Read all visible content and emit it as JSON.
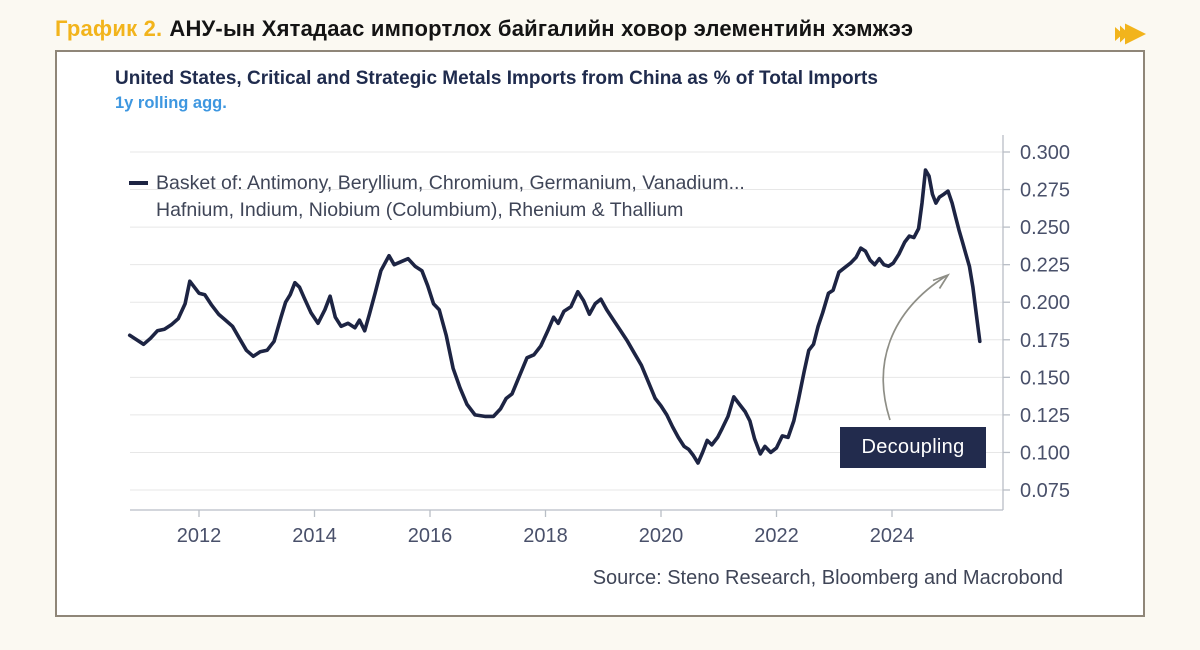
{
  "header": {
    "figure_label": "График 2.",
    "title": "АНУ-ын Хятадаас импортлох байгалийн ховор элементийн хэмжээ",
    "arrow_icon": "fast-forward",
    "accent_color": "#f2b41c"
  },
  "chart": {
    "title": "United States, Critical and Strategic Metals Imports from China as % of Total Imports",
    "subtitle": "1y rolling agg.",
    "legend_line1": "Basket of: Antimony, Beryllium, Chromium, Germanium, Vanadium...",
    "legend_line2": "Hafnium, Indium, Niobium (Columbium), Rhenium & Thallium",
    "annotation_label": "Decoupling",
    "source": "Source: Steno Research, Bloomberg and Macrobond",
    "colors": {
      "line": "#1d2443",
      "title": "#1f2b4d",
      "subtitle": "#3e97e0",
      "annotation_bg": "#222b4d",
      "annotation_text": "#ffffff",
      "grid": "#e7e7e7",
      "axis": "#b9bec6",
      "tick_label": "#49506a",
      "arrow": "#8e8e86"
    }
  },
  "chart_data": {
    "type": "line",
    "title": "United States, Critical and Strategic Metals Imports from China as % of Total Imports",
    "subtitle": "1y rolling agg.",
    "legend_position": "top-left",
    "grid": "horizontal",
    "y_axis_side": "right",
    "xlim": [
      2010.7,
      2025.65
    ],
    "ylim": [
      0.075,
      0.3
    ],
    "x_ticks": [
      "2012",
      "2014",
      "2016",
      "2018",
      "2020",
      "2022",
      "2024"
    ],
    "y_ticks": [
      "0.300",
      "0.275",
      "0.250",
      "0.225",
      "0.200",
      "0.175",
      "0.150",
      "0.125",
      "0.100",
      "0.075"
    ],
    "series": [
      {
        "name": "Basket of: Antimony, Beryllium, Chromium, Germanium, Vanadium... Hafnium, Indium, Niobium (Columbium), Rhenium & Thallium",
        "points": [
          [
            2010.8,
            0.178
          ],
          [
            2010.92,
            0.175
          ],
          [
            2011.04,
            0.172
          ],
          [
            2011.16,
            0.176
          ],
          [
            2011.28,
            0.181
          ],
          [
            2011.4,
            0.182
          ],
          [
            2011.52,
            0.185
          ],
          [
            2011.64,
            0.189
          ],
          [
            2011.76,
            0.199
          ],
          [
            2011.84,
            0.214
          ],
          [
            2011.92,
            0.21
          ],
          [
            2012.0,
            0.206
          ],
          [
            2012.1,
            0.205
          ],
          [
            2012.22,
            0.198
          ],
          [
            2012.34,
            0.192
          ],
          [
            2012.46,
            0.188
          ],
          [
            2012.58,
            0.184
          ],
          [
            2012.7,
            0.176
          ],
          [
            2012.82,
            0.168
          ],
          [
            2012.94,
            0.164
          ],
          [
            2013.06,
            0.167
          ],
          [
            2013.18,
            0.168
          ],
          [
            2013.3,
            0.174
          ],
          [
            2013.42,
            0.19
          ],
          [
            2013.5,
            0.2
          ],
          [
            2013.58,
            0.205
          ],
          [
            2013.66,
            0.213
          ],
          [
            2013.74,
            0.21
          ],
          [
            2013.82,
            0.203
          ],
          [
            2013.94,
            0.193
          ],
          [
            2014.06,
            0.186
          ],
          [
            2014.18,
            0.195
          ],
          [
            2014.27,
            0.204
          ],
          [
            2014.36,
            0.19
          ],
          [
            2014.46,
            0.184
          ],
          [
            2014.58,
            0.186
          ],
          [
            2014.7,
            0.183
          ],
          [
            2014.78,
            0.188
          ],
          [
            2014.87,
            0.181
          ],
          [
            2014.95,
            0.192
          ],
          [
            2015.05,
            0.206
          ],
          [
            2015.15,
            0.221
          ],
          [
            2015.29,
            0.231
          ],
          [
            2015.38,
            0.225
          ],
          [
            2015.5,
            0.227
          ],
          [
            2015.62,
            0.229
          ],
          [
            2015.74,
            0.224
          ],
          [
            2015.86,
            0.221
          ],
          [
            2015.96,
            0.211
          ],
          [
            2016.06,
            0.199
          ],
          [
            2016.16,
            0.195
          ],
          [
            2016.28,
            0.178
          ],
          [
            2016.4,
            0.156
          ],
          [
            2016.52,
            0.143
          ],
          [
            2016.64,
            0.132
          ],
          [
            2016.78,
            0.125
          ],
          [
            2016.95,
            0.124
          ],
          [
            2017.1,
            0.124
          ],
          [
            2017.22,
            0.129
          ],
          [
            2017.32,
            0.136
          ],
          [
            2017.42,
            0.139
          ],
          [
            2017.55,
            0.151
          ],
          [
            2017.68,
            0.163
          ],
          [
            2017.8,
            0.165
          ],
          [
            2017.92,
            0.171
          ],
          [
            2018.04,
            0.181
          ],
          [
            2018.14,
            0.19
          ],
          [
            2018.22,
            0.186
          ],
          [
            2018.32,
            0.194
          ],
          [
            2018.44,
            0.197
          ],
          [
            2018.56,
            0.207
          ],
          [
            2018.66,
            0.201
          ],
          [
            2018.76,
            0.192
          ],
          [
            2018.86,
            0.199
          ],
          [
            2018.96,
            0.202
          ],
          [
            2019.06,
            0.195
          ],
          [
            2019.18,
            0.188
          ],
          [
            2019.3,
            0.181
          ],
          [
            2019.42,
            0.174
          ],
          [
            2019.54,
            0.166
          ],
          [
            2019.66,
            0.158
          ],
          [
            2019.78,
            0.147
          ],
          [
            2019.9,
            0.136
          ],
          [
            2020.0,
            0.131
          ],
          [
            2020.1,
            0.125
          ],
          [
            2020.2,
            0.117
          ],
          [
            2020.3,
            0.11
          ],
          [
            2020.4,
            0.104
          ],
          [
            2020.48,
            0.102
          ],
          [
            2020.56,
            0.098
          ],
          [
            2020.64,
            0.093
          ],
          [
            2020.72,
            0.1
          ],
          [
            2020.8,
            0.108
          ],
          [
            2020.88,
            0.105
          ],
          [
            2020.98,
            0.11
          ],
          [
            2021.06,
            0.116
          ],
          [
            2021.16,
            0.124
          ],
          [
            2021.26,
            0.137
          ],
          [
            2021.36,
            0.132
          ],
          [
            2021.46,
            0.127
          ],
          [
            2021.54,
            0.121
          ],
          [
            2021.62,
            0.109
          ],
          [
            2021.72,
            0.099
          ],
          [
            2021.8,
            0.104
          ],
          [
            2021.9,
            0.1
          ],
          [
            2022.0,
            0.103
          ],
          [
            2022.1,
            0.111
          ],
          [
            2022.2,
            0.11
          ],
          [
            2022.3,
            0.121
          ],
          [
            2022.38,
            0.135
          ],
          [
            2022.48,
            0.154
          ],
          [
            2022.56,
            0.168
          ],
          [
            2022.64,
            0.172
          ],
          [
            2022.72,
            0.184
          ],
          [
            2022.8,
            0.193
          ],
          [
            2022.9,
            0.206
          ],
          [
            2022.98,
            0.208
          ],
          [
            2023.08,
            0.22
          ],
          [
            2023.18,
            0.223
          ],
          [
            2023.28,
            0.226
          ],
          [
            2023.38,
            0.23
          ],
          [
            2023.46,
            0.236
          ],
          [
            2023.54,
            0.234
          ],
          [
            2023.62,
            0.228
          ],
          [
            2023.7,
            0.225
          ],
          [
            2023.78,
            0.229
          ],
          [
            2023.86,
            0.225
          ],
          [
            2023.94,
            0.224
          ],
          [
            2024.02,
            0.226
          ],
          [
            2024.12,
            0.232
          ],
          [
            2024.22,
            0.24
          ],
          [
            2024.3,
            0.244
          ],
          [
            2024.38,
            0.243
          ],
          [
            2024.46,
            0.249
          ],
          [
            2024.52,
            0.266
          ],
          [
            2024.58,
            0.288
          ],
          [
            2024.64,
            0.284
          ],
          [
            2024.7,
            0.272
          ],
          [
            2024.76,
            0.266
          ],
          [
            2024.82,
            0.27
          ],
          [
            2024.9,
            0.272
          ],
          [
            2024.97,
            0.274
          ],
          [
            2025.04,
            0.266
          ],
          [
            2025.1,
            0.257
          ],
          [
            2025.16,
            0.248
          ],
          [
            2025.22,
            0.24
          ],
          [
            2025.28,
            0.232
          ],
          [
            2025.34,
            0.224
          ],
          [
            2025.4,
            0.21
          ],
          [
            2025.46,
            0.192
          ],
          [
            2025.52,
            0.174
          ]
        ]
      }
    ],
    "annotation": {
      "label": "Decoupling",
      "arrow_points_to": "2025 sharp decline"
    }
  }
}
